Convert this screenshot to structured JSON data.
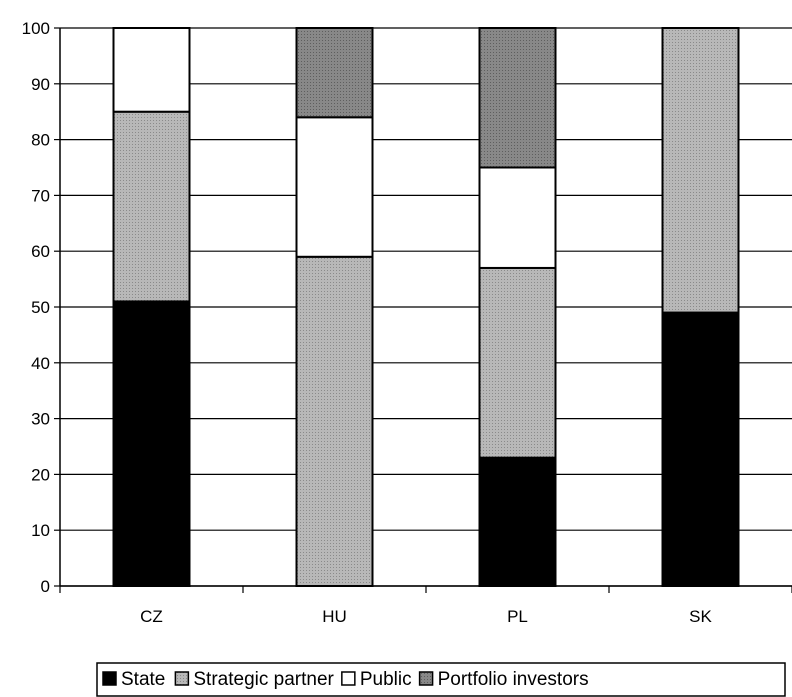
{
  "chart_data": {
    "type": "bar",
    "stacked": true,
    "categories": [
      "CZ",
      "HU",
      "PL",
      "SK"
    ],
    "series": [
      {
        "name": "State",
        "values": [
          51,
          0,
          23,
          49
        ],
        "color": "#000000"
      },
      {
        "name": "Strategic partner",
        "values": [
          34,
          59,
          34,
          51
        ],
        "color": "#b0b0b0"
      },
      {
        "name": "Public",
        "values": [
          15,
          25,
          18,
          0
        ],
        "color": "#ffffff"
      },
      {
        "name": "Portfolio investors",
        "values": [
          0,
          16,
          25,
          0
        ],
        "color": "#808080"
      }
    ],
    "title": "",
    "xlabel": "",
    "ylabel": "",
    "ylim": [
      0,
      100
    ],
    "yticks": [
      0,
      10,
      20,
      30,
      40,
      50,
      60,
      70,
      80,
      90,
      100
    ],
    "grid": true,
    "legend_position": "bottom"
  }
}
